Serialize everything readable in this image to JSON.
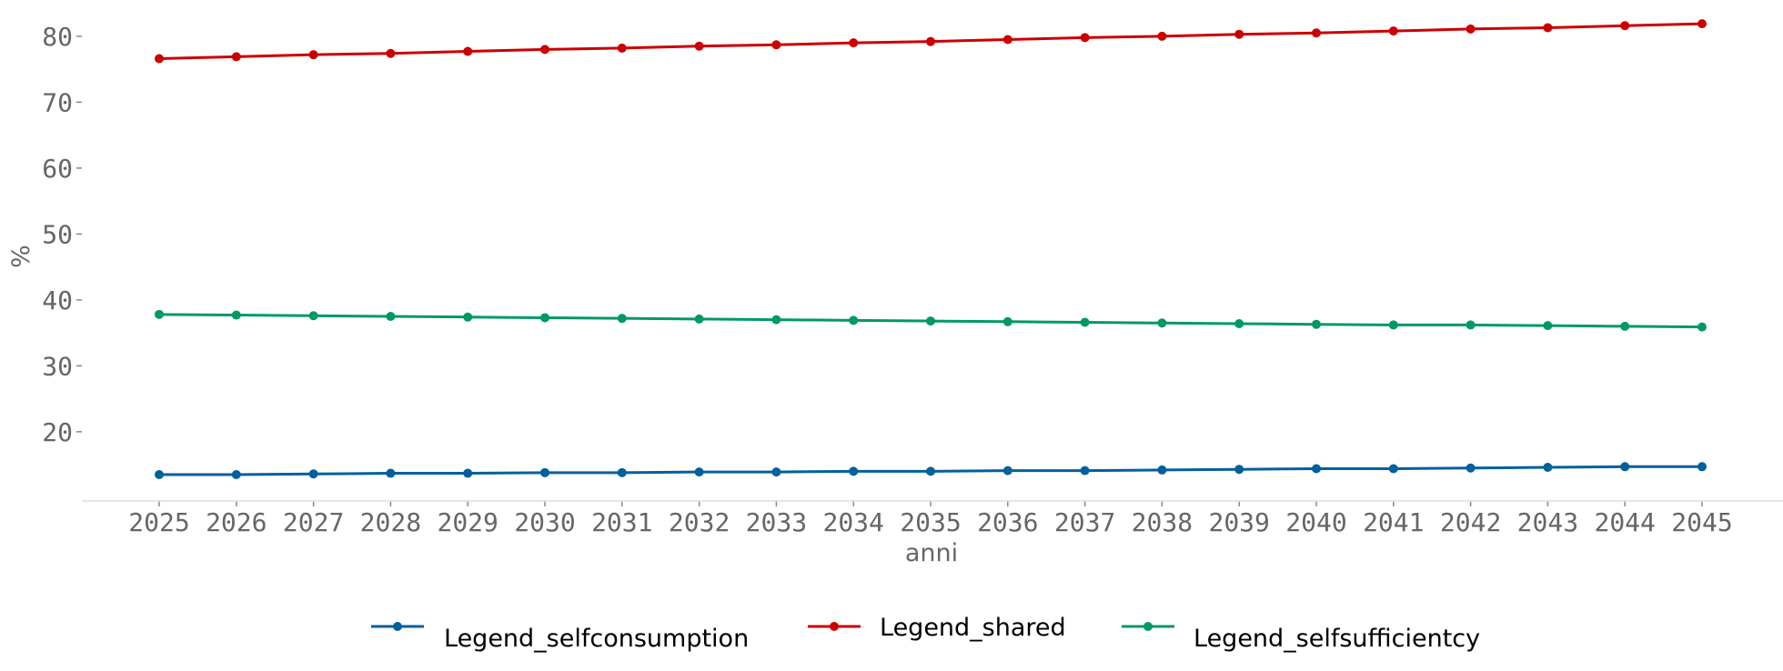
{
  "chart_data": {
    "type": "line",
    "title": "",
    "xlabel": "anni",
    "ylabel": "%",
    "x": [
      2025,
      2026,
      2027,
      2028,
      2029,
      2030,
      2031,
      2032,
      2033,
      2034,
      2035,
      2036,
      2037,
      2038,
      2039,
      2040,
      2041,
      2042,
      2043,
      2044,
      2045
    ],
    "yticks": [
      20,
      30,
      40,
      50,
      60,
      70,
      80
    ],
    "ylim": [
      9.5,
      85.5
    ],
    "grid": false,
    "legend_position": "bottom",
    "series": [
      {
        "name": "Legend_selfconsumption",
        "color": "#00609c",
        "values": [
          13.5,
          13.5,
          13.6,
          13.7,
          13.7,
          13.8,
          13.8,
          13.9,
          13.9,
          14.0,
          14.0,
          14.1,
          14.1,
          14.2,
          14.3,
          14.4,
          14.4,
          14.5,
          14.6,
          14.7,
          14.7
        ]
      },
      {
        "name": "Legend_shared",
        "color": "#cc0000",
        "values": [
          76.6,
          76.9,
          77.2,
          77.4,
          77.7,
          78.0,
          78.2,
          78.5,
          78.7,
          79.0,
          79.2,
          79.5,
          79.8,
          80.0,
          80.3,
          80.5,
          80.8,
          81.1,
          81.3,
          81.6,
          81.9
        ]
      },
      {
        "name": "Legend_selfsufficientcy",
        "color": "#009966",
        "values": [
          37.8,
          37.7,
          37.6,
          37.5,
          37.4,
          37.3,
          37.2,
          37.1,
          37.0,
          36.9,
          36.8,
          36.7,
          36.6,
          36.5,
          36.4,
          36.3,
          36.2,
          36.2,
          36.1,
          36.0,
          35.9
        ]
      }
    ]
  }
}
